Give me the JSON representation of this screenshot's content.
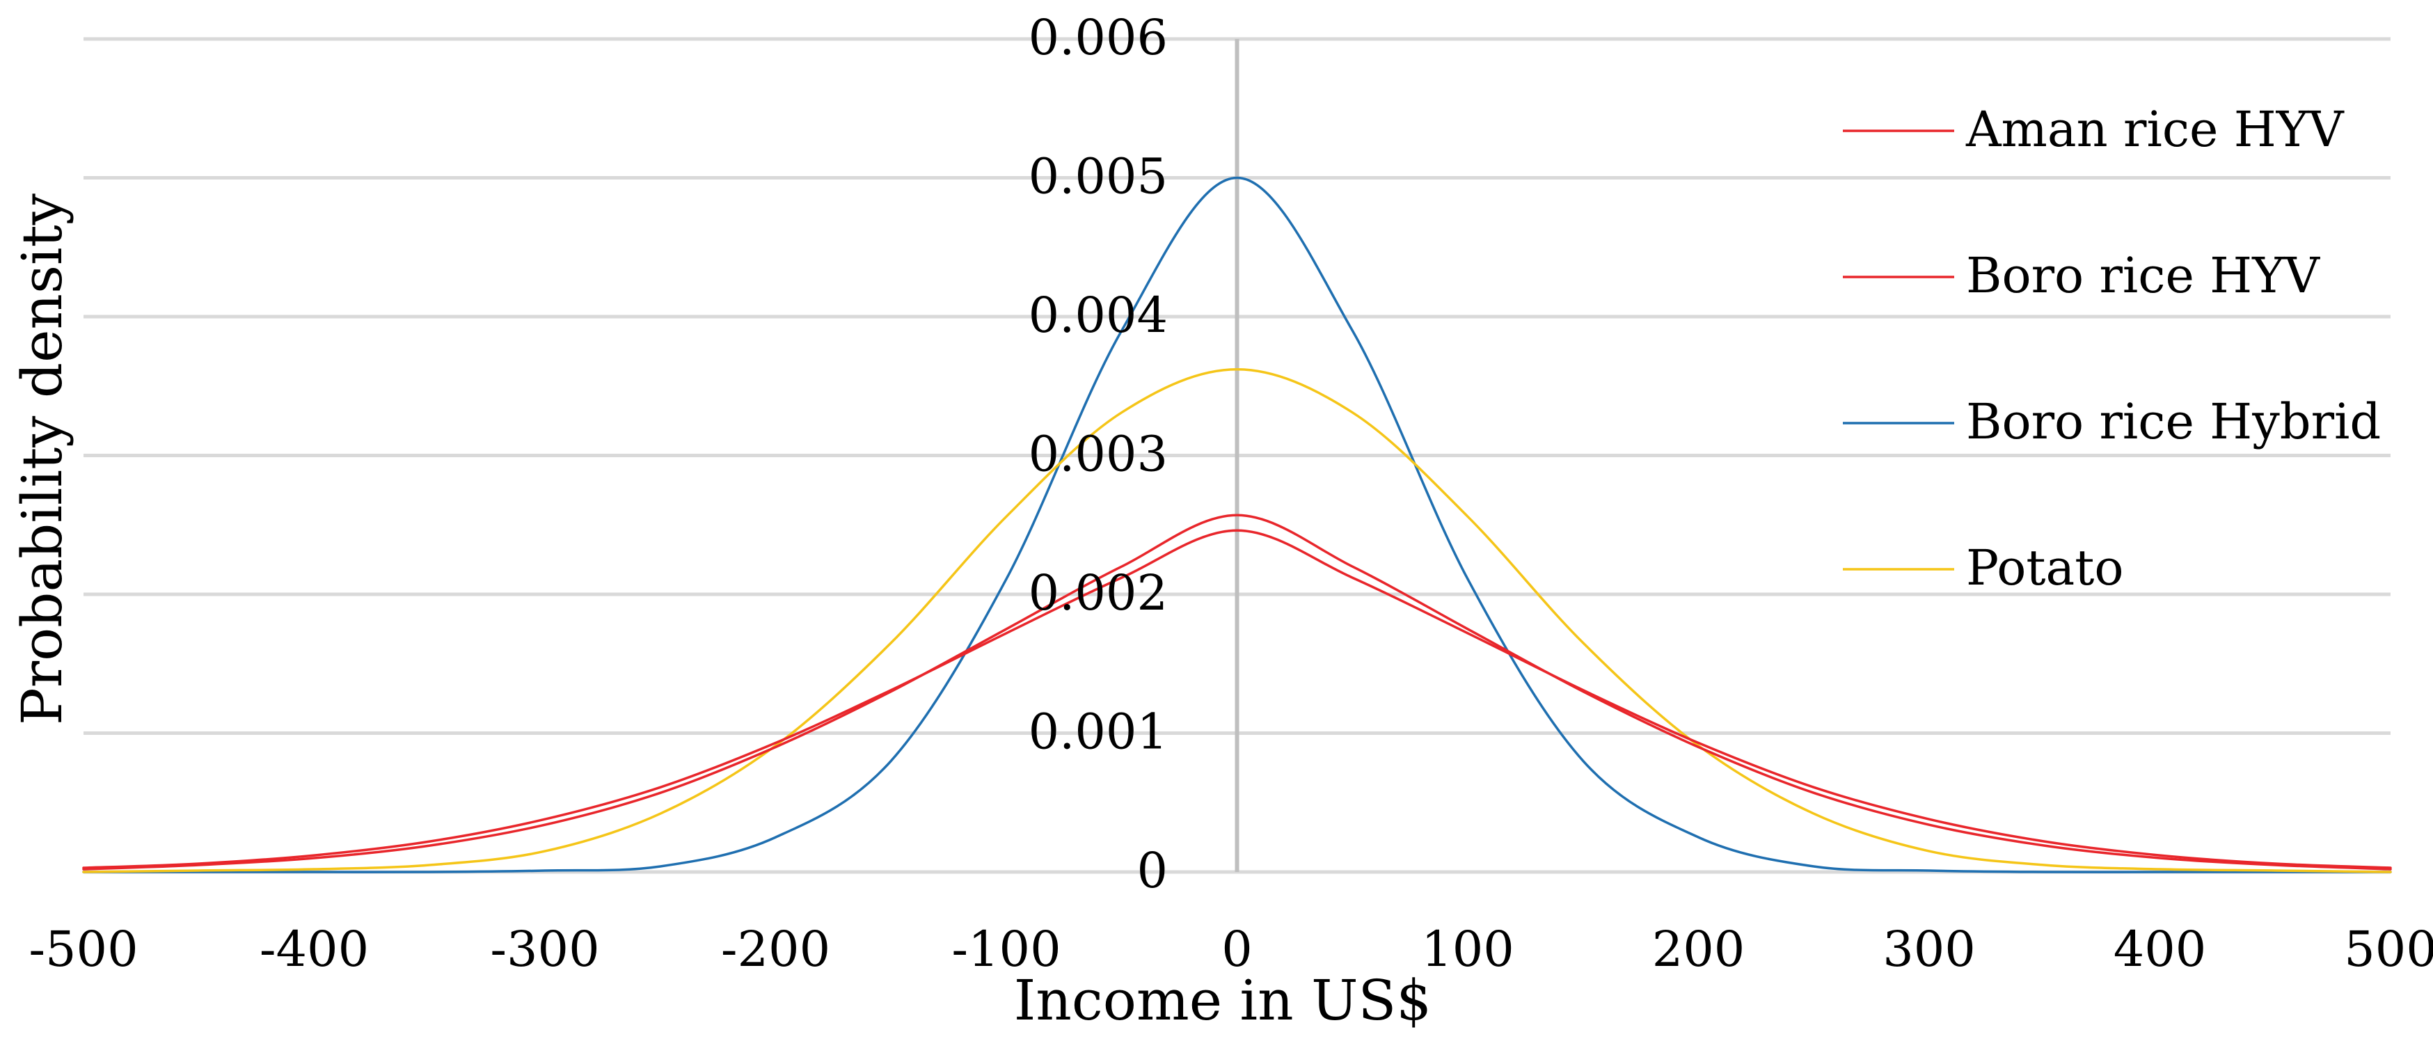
{
  "chart_data": {
    "type": "line",
    "title": "",
    "xlabel": "Income in US$",
    "ylabel": "Probability density",
    "xlim": [
      -500,
      500
    ],
    "ylim": [
      0,
      0.006
    ],
    "x_ticks": [
      -500,
      -400,
      -300,
      -200,
      -100,
      0,
      100,
      200,
      300,
      400,
      500
    ],
    "x_tick_labels": [
      "-500",
      "-400",
      "-300",
      "-200",
      "-100",
      "0",
      "100",
      "200",
      "300",
      "400",
      "500"
    ],
    "y_ticks": [
      0,
      0.001,
      0.002,
      0.003,
      0.004,
      0.005,
      0.006
    ],
    "y_tick_labels": [
      "0",
      "0.001",
      "0.002",
      "0.003",
      "0.004",
      "0.005",
      "0.006"
    ],
    "grid": "horizontal",
    "legend_position": "right",
    "x": [
      -500,
      -450,
      -400,
      -350,
      -300,
      -250,
      -200,
      -150,
      -100,
      -50,
      0,
      50,
      100,
      150,
      200,
      250,
      300,
      350,
      400,
      450,
      500
    ],
    "series": [
      {
        "name": "Aman rice HYV",
        "color": "#e8262b",
        "values": [
          3e-05,
          6e-05,
          0.00012,
          0.00022,
          0.00038,
          0.00061,
          0.00093,
          0.00131,
          0.00172,
          0.00212,
          0.00246,
          0.00212,
          0.00172,
          0.00131,
          0.00093,
          0.00061,
          0.00038,
          0.00022,
          0.00012,
          6e-05,
          3e-05
        ]
      },
      {
        "name": "Boro rice HYV",
        "color": "#e8262b",
        "values": [
          2e-05,
          5e-05,
          0.0001,
          0.00019,
          0.00034,
          0.00057,
          0.0009,
          0.0013,
          0.00175,
          0.0022,
          0.00257,
          0.0022,
          0.00175,
          0.0013,
          0.0009,
          0.00057,
          0.00034,
          0.00019,
          0.0001,
          5e-05,
          2e-05
        ]
      },
      {
        "name": "Boro rice Hybrid",
        "color": "#1f6fb0",
        "values": [
          0.0,
          0.0,
          0.0,
          0.0,
          1e-05,
          4e-05,
          0.00025,
          0.0008,
          0.00211,
          0.0039,
          0.005,
          0.0039,
          0.00211,
          0.0008,
          0.00025,
          4e-05,
          1e-05,
          0.0,
          0.0,
          0.0,
          0.0
        ]
      },
      {
        "name": "Potato",
        "color": "#f5c518",
        "values": [
          0.0,
          1e-05,
          2e-05,
          5e-05,
          0.00015,
          0.00042,
          0.00091,
          0.00165,
          0.00256,
          0.00331,
          0.00362,
          0.00331,
          0.00256,
          0.00165,
          0.00091,
          0.00042,
          0.00015,
          5e-05,
          2e-05,
          1e-05,
          0.0
        ]
      }
    ]
  }
}
